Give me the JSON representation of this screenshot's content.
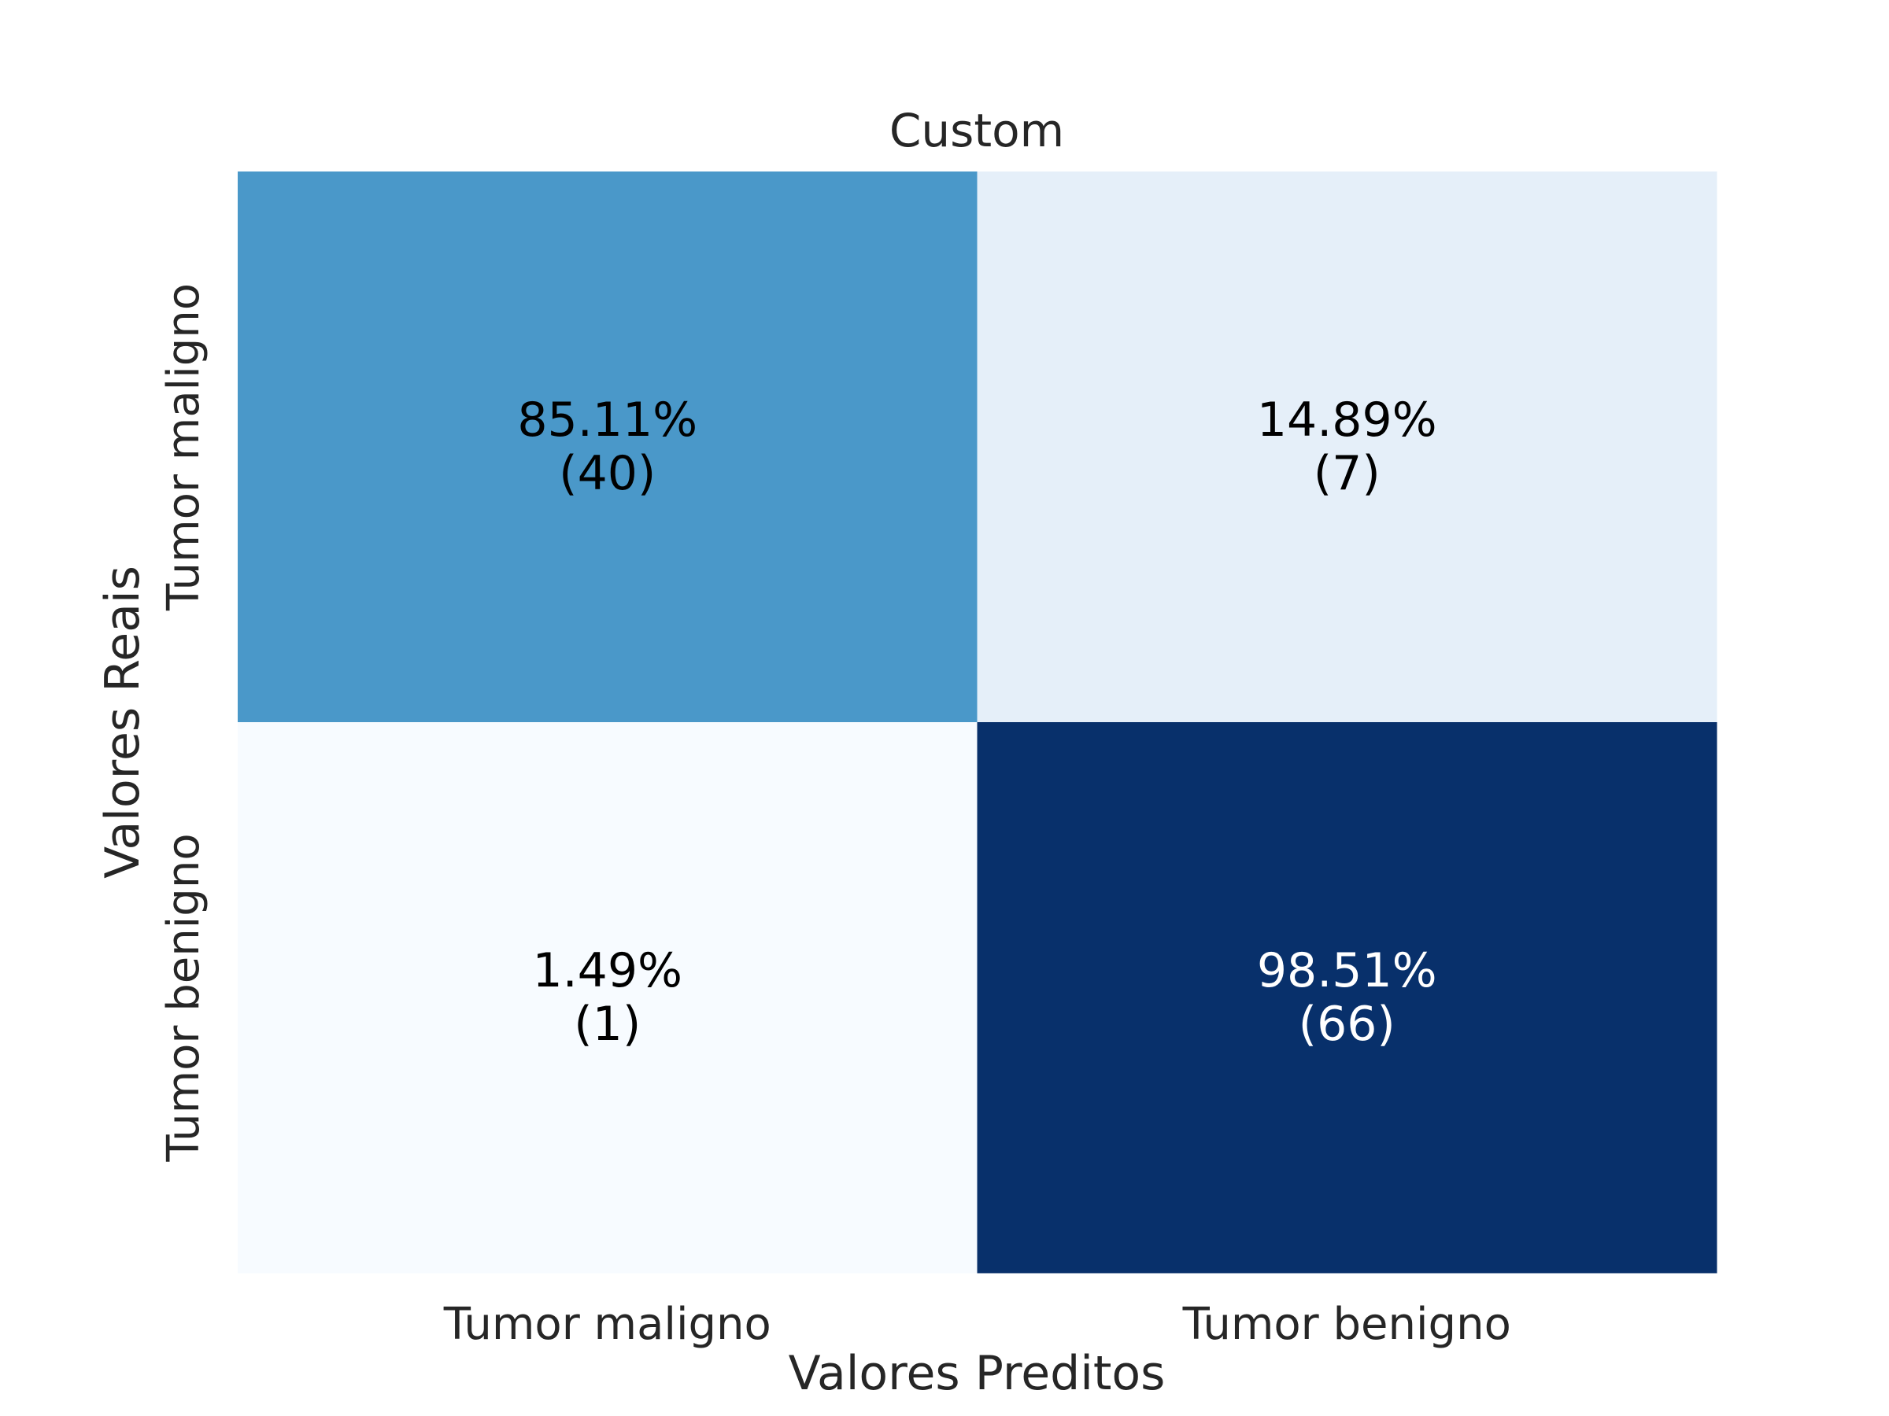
{
  "chart_data": {
    "type": "heatmap",
    "title": "Custom",
    "xlabel": "Valores Preditos",
    "ylabel": "Valores Reais",
    "x_categories": [
      "Tumor maligno",
      "Tumor benigno"
    ],
    "y_categories": [
      "Tumor maligno",
      "Tumor benigno"
    ],
    "cells": [
      {
        "row": 0,
        "col": 0,
        "percent_label": "85.11%",
        "count_label": "(40)",
        "percent": 85.11,
        "count": 40
      },
      {
        "row": 0,
        "col": 1,
        "percent_label": "14.89%",
        "count_label": "(7)",
        "percent": 14.89,
        "count": 7
      },
      {
        "row": 1,
        "col": 0,
        "percent_label": "1.49%",
        "count_label": "(1)",
        "percent": 1.49,
        "count": 1
      },
      {
        "row": 1,
        "col": 1,
        "percent_label": "98.51%",
        "count_label": "(66)",
        "percent": 98.51,
        "count": 66
      }
    ],
    "colormap": "Blues",
    "colorbar": false,
    "grid": false
  }
}
